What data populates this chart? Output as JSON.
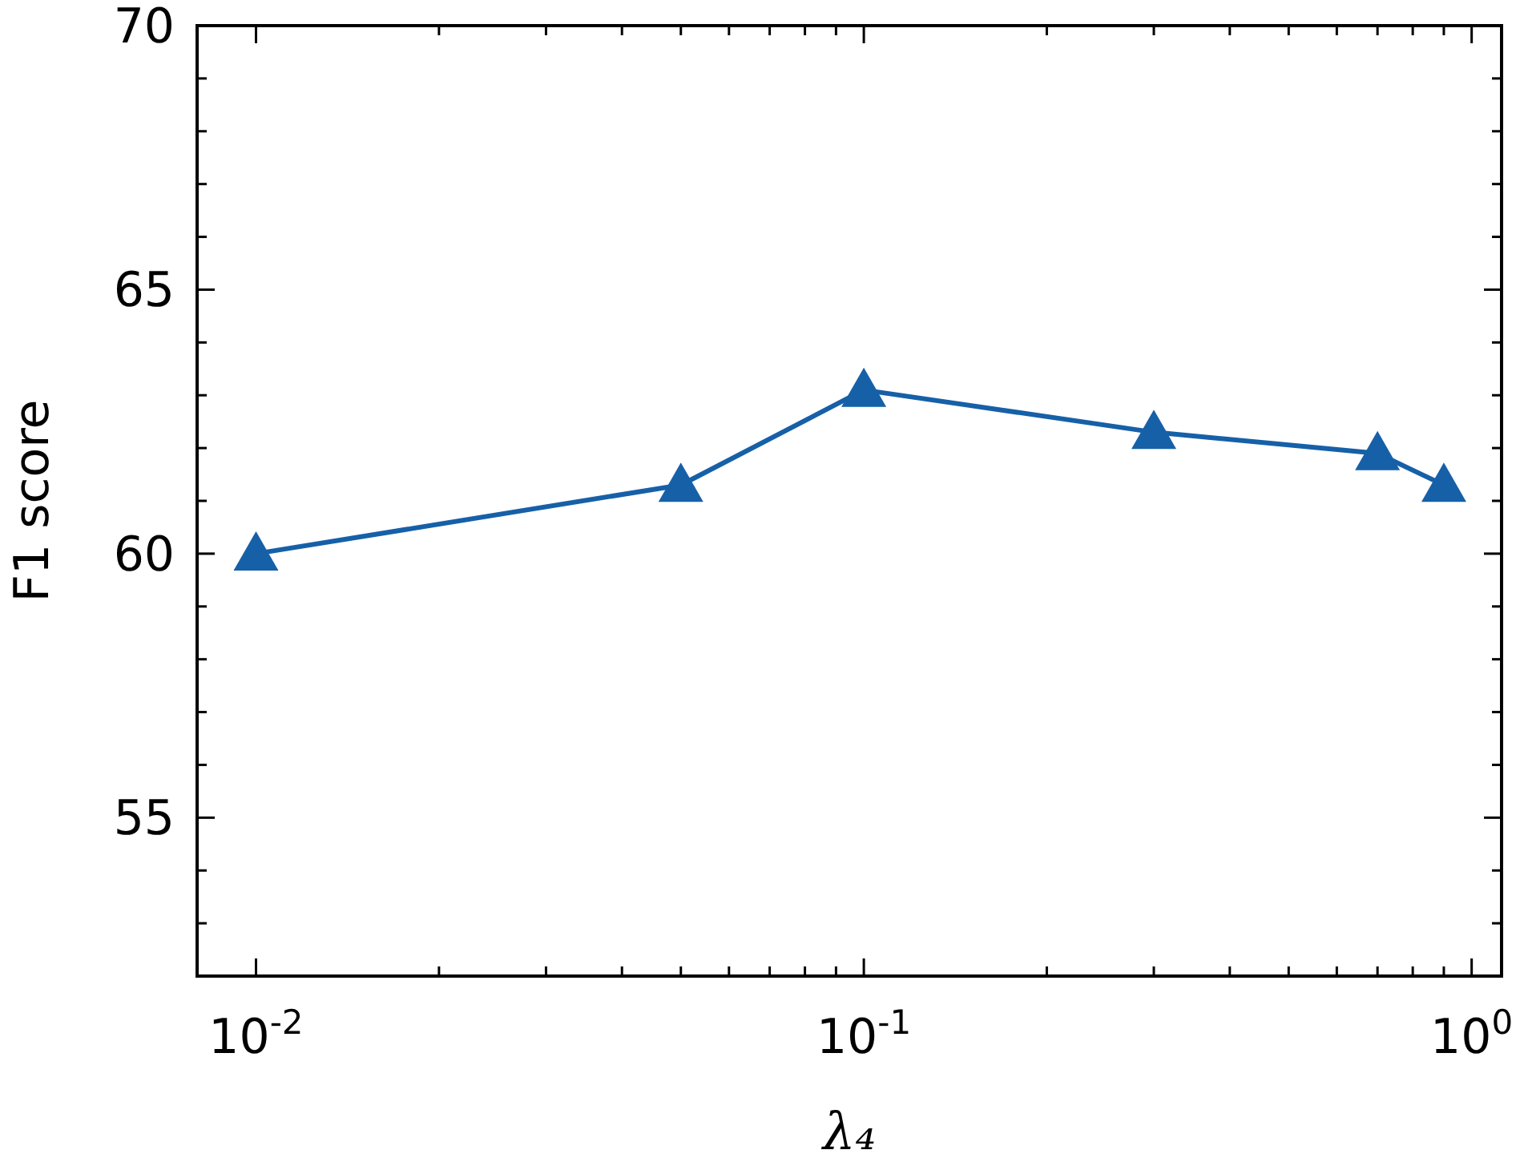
{
  "chart_data": {
    "type": "line",
    "xlabel": "λ₄",
    "ylabel": "F1 score",
    "log": "x",
    "xlim": [
      0.008,
      1.12
    ],
    "ylim": [
      52,
      70
    ],
    "xticks": [
      {
        "value": 0.01,
        "label": "10$^{-2}$"
      },
      {
        "value": 0.02,
        "label": null
      },
      {
        "value": 0.03,
        "label": null
      },
      {
        "value": 0.04,
        "label": null
      },
      {
        "value": 0.05,
        "label": null
      },
      {
        "value": 0.06,
        "label": null
      },
      {
        "value": 0.07,
        "label": null
      },
      {
        "value": 0.08,
        "label": null
      },
      {
        "value": 0.09,
        "label": null
      },
      {
        "value": 0.1,
        "label": "10$^{-1}$"
      },
      {
        "value": 0.2,
        "label": null
      },
      {
        "value": 0.3,
        "label": null
      },
      {
        "value": 0.4,
        "label": null
      },
      {
        "value": 0.5,
        "label": null
      },
      {
        "value": 0.6,
        "label": null
      },
      {
        "value": 0.7,
        "label": null
      },
      {
        "value": 0.8,
        "label": null
      },
      {
        "value": 0.9,
        "label": null
      },
      {
        "value": 1,
        "label": "10$^{0}$"
      }
    ],
    "yticks": [
      {
        "value": 53,
        "label": null
      },
      {
        "value": 54,
        "label": null
      },
      55,
      {
        "value": 56,
        "label": null
      },
      {
        "value": 57,
        "label": null
      },
      {
        "value": 58,
        "label": null
      },
      {
        "value": 59,
        "label": null
      },
      60,
      {
        "value": 61,
        "label": null
      },
      {
        "value": 62,
        "label": null
      },
      {
        "value": 63,
        "label": null
      },
      {
        "value": 64,
        "label": null
      },
      65,
      {
        "value": 66,
        "label": null
      },
      {
        "value": 67,
        "label": null
      },
      {
        "value": 68,
        "label": null
      },
      {
        "value": 69,
        "label": null
      },
      70
    ],
    "grid": false,
    "marker": "triangle",
    "line_style": "solid",
    "x": [
      0.01,
      0.05,
      0.1,
      0.3,
      0.7,
      0.9
    ],
    "series": [
      {
        "color": "#1660a8",
        "values": [
          60.0,
          61.3,
          63.1,
          62.3,
          61.9,
          61.3
        ]
      }
    ]
  }
}
